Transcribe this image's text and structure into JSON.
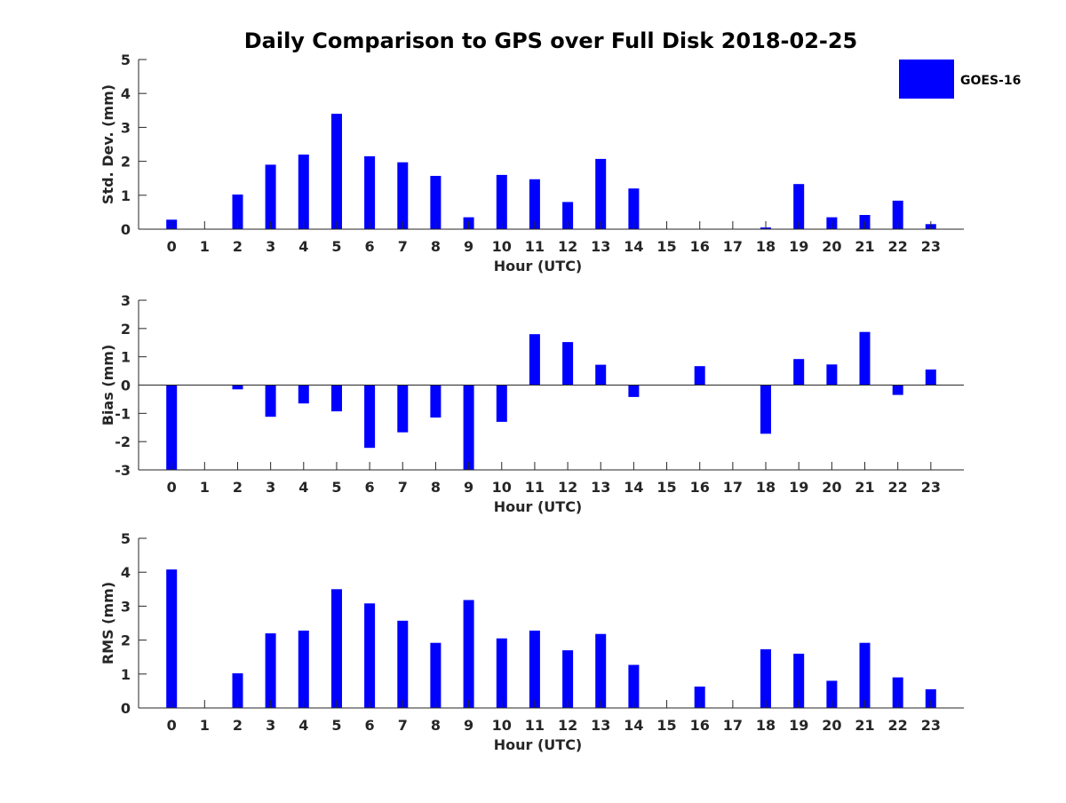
{
  "page_title": "Daily Comparison to GPS over Full Disk 2018-02-25",
  "legend": {
    "label": "GOES-16",
    "color": "#0000ff"
  },
  "chart_data": [
    {
      "type": "bar",
      "title": "Daily Comparison to GPS over Full Disk 2018-02-25",
      "xlabel": "Hour (UTC)",
      "ylabel": "Std. Dev. (mm)",
      "ylim": [
        0,
        5
      ],
      "yticks": [
        0,
        1,
        2,
        3,
        4,
        5
      ],
      "categories": [
        "0",
        "1",
        "2",
        "3",
        "4",
        "5",
        "6",
        "7",
        "8",
        "9",
        "10",
        "11",
        "12",
        "13",
        "14",
        "15",
        "16",
        "17",
        "18",
        "19",
        "20",
        "21",
        "22",
        "23"
      ],
      "series": [
        {
          "name": "GOES-16",
          "color": "#0000ff",
          "values": [
            0.28,
            0,
            1.02,
            1.9,
            2.2,
            3.4,
            2.15,
            1.97,
            1.57,
            0.35,
            1.6,
            1.47,
            0.8,
            2.07,
            1.2,
            0,
            0,
            0,
            0.05,
            1.33,
            0.35,
            0.42,
            0.84,
            0.15
          ]
        }
      ],
      "grid": false,
      "legend_position": "top-right"
    },
    {
      "type": "bar",
      "xlabel": "Hour (UTC)",
      "ylabel": "Bias (mm)",
      "ylim": [
        -3,
        3
      ],
      "yticks": [
        -3,
        -2,
        -1,
        0,
        1,
        2,
        3
      ],
      "categories": [
        "0",
        "1",
        "2",
        "3",
        "4",
        "5",
        "6",
        "7",
        "8",
        "9",
        "10",
        "11",
        "12",
        "13",
        "14",
        "15",
        "16",
        "17",
        "18",
        "19",
        "20",
        "21",
        "22",
        "23"
      ],
      "series": [
        {
          "name": "GOES-16",
          "color": "#0000ff",
          "values": [
            -3.0,
            0,
            -0.15,
            -1.12,
            -0.65,
            -0.93,
            -2.22,
            -1.67,
            -1.15,
            -3.0,
            -1.3,
            1.8,
            1.52,
            0.72,
            -0.42,
            0,
            0.67,
            0,
            -1.72,
            0.92,
            0.73,
            1.88,
            -0.35,
            0.55
          ]
        }
      ],
      "grid": false
    },
    {
      "type": "bar",
      "xlabel": "Hour (UTC)",
      "ylabel": "RMS (mm)",
      "ylim": [
        0,
        5
      ],
      "yticks": [
        0,
        1,
        2,
        3,
        4,
        5
      ],
      "categories": [
        "0",
        "1",
        "2",
        "3",
        "4",
        "5",
        "6",
        "7",
        "8",
        "9",
        "10",
        "11",
        "12",
        "13",
        "14",
        "15",
        "16",
        "17",
        "18",
        "19",
        "20",
        "21",
        "22",
        "23"
      ],
      "series": [
        {
          "name": "GOES-16",
          "color": "#0000ff",
          "values": [
            4.08,
            0,
            1.02,
            2.2,
            2.28,
            3.5,
            3.08,
            2.57,
            1.92,
            3.18,
            2.05,
            2.28,
            1.7,
            2.18,
            1.27,
            0,
            0.63,
            0,
            1.73,
            1.6,
            0.8,
            1.92,
            0.9,
            0.55
          ]
        }
      ],
      "grid": false
    }
  ]
}
